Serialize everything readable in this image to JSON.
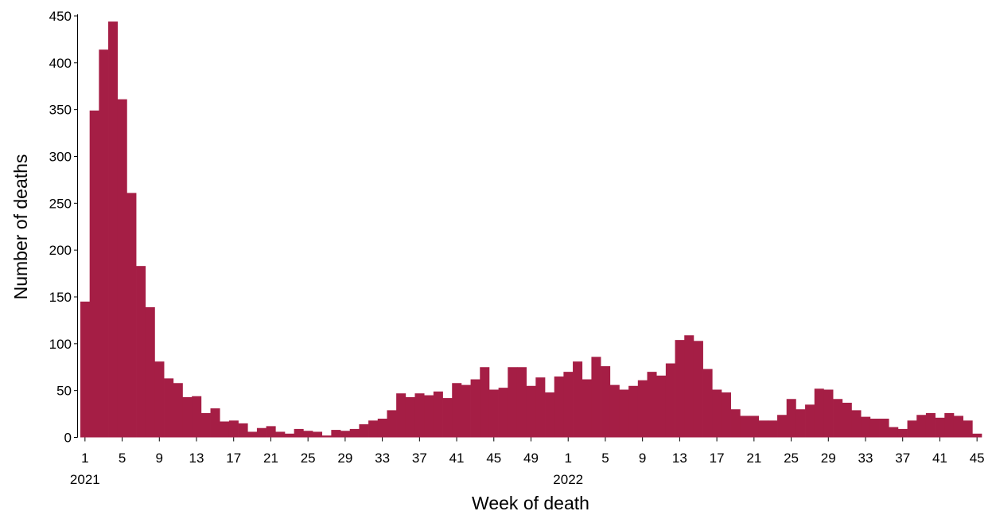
{
  "chart_data": {
    "type": "bar",
    "xlabel": "Week of death",
    "ylabel": "Number of deaths",
    "ylim": [
      0,
      450
    ],
    "yticks": [
      0,
      50,
      100,
      150,
      200,
      250,
      300,
      350,
      400,
      450
    ],
    "grid": false,
    "legend": "none",
    "bar_color": "#A51E45",
    "year_labels": [
      {
        "label": "2021",
        "at_index": 0
      },
      {
        "label": "2022",
        "at_index": 52
      }
    ],
    "categories": [
      "2021-W1",
      "2021-W2",
      "2021-W3",
      "2021-W4",
      "2021-W5",
      "2021-W6",
      "2021-W7",
      "2021-W8",
      "2021-W9",
      "2021-W10",
      "2021-W11",
      "2021-W12",
      "2021-W13",
      "2021-W14",
      "2021-W15",
      "2021-W16",
      "2021-W17",
      "2021-W18",
      "2021-W19",
      "2021-W20",
      "2021-W21",
      "2021-W22",
      "2021-W23",
      "2021-W24",
      "2021-W25",
      "2021-W26",
      "2021-W27",
      "2021-W28",
      "2021-W29",
      "2021-W30",
      "2021-W31",
      "2021-W32",
      "2021-W33",
      "2021-W34",
      "2021-W35",
      "2021-W36",
      "2021-W37",
      "2021-W38",
      "2021-W39",
      "2021-W40",
      "2021-W41",
      "2021-W42",
      "2021-W43",
      "2021-W44",
      "2021-W45",
      "2021-W46",
      "2021-W47",
      "2021-W48",
      "2021-W49",
      "2021-W50",
      "2021-W51",
      "2021-W52",
      "2022-W1",
      "2022-W2",
      "2022-W3",
      "2022-W4",
      "2022-W5",
      "2022-W6",
      "2022-W7",
      "2022-W8",
      "2022-W9",
      "2022-W10",
      "2022-W11",
      "2022-W12",
      "2022-W13",
      "2022-W14",
      "2022-W15",
      "2022-W16",
      "2022-W17",
      "2022-W18",
      "2022-W19",
      "2022-W20",
      "2022-W21",
      "2022-W22",
      "2022-W23",
      "2022-W24",
      "2022-W25",
      "2022-W26",
      "2022-W27",
      "2022-W28",
      "2022-W29",
      "2022-W30",
      "2022-W31",
      "2022-W32",
      "2022-W33",
      "2022-W34",
      "2022-W35",
      "2022-W36",
      "2022-W37",
      "2022-W38",
      "2022-W39",
      "2022-W40",
      "2022-W41",
      "2022-W42",
      "2022-W43",
      "2022-W44",
      "2022-W45"
    ],
    "values": [
      145,
      349,
      414,
      444,
      361,
      261,
      183,
      139,
      81,
      63,
      58,
      43,
      44,
      26,
      31,
      17,
      18,
      15,
      6,
      10,
      12,
      6,
      4,
      9,
      7,
      6,
      2,
      8,
      7,
      9,
      14,
      18,
      20,
      29,
      47,
      43,
      47,
      45,
      49,
      42,
      58,
      56,
      62,
      75,
      51,
      53,
      75,
      75,
      55,
      64,
      48,
      65,
      70,
      81,
      62,
      86,
      76,
      56,
      51,
      55,
      61,
      70,
      66,
      79,
      104,
      109,
      103,
      73,
      51,
      48,
      30,
      23,
      23,
      18,
      18,
      24,
      41,
      30,
      35,
      52,
      51,
      41,
      37,
      29,
      22,
      20,
      20,
      11,
      9,
      18,
      24,
      26,
      21,
      26,
      23,
      18,
      4
    ],
    "tick_indices": [
      0,
      4,
      8,
      12,
      16,
      20,
      24,
      28,
      32,
      36,
      40,
      44,
      48,
      52,
      56,
      60,
      64,
      68,
      72,
      76,
      80,
      84,
      88,
      92,
      96
    ],
    "tick_labels": [
      "1",
      "5",
      "9",
      "13",
      "17",
      "21",
      "25",
      "29",
      "33",
      "37",
      "41",
      "45",
      "49",
      "1",
      "5",
      "9",
      "13",
      "17",
      "21",
      "25",
      "29",
      "33",
      "37",
      "41",
      "45"
    ]
  }
}
